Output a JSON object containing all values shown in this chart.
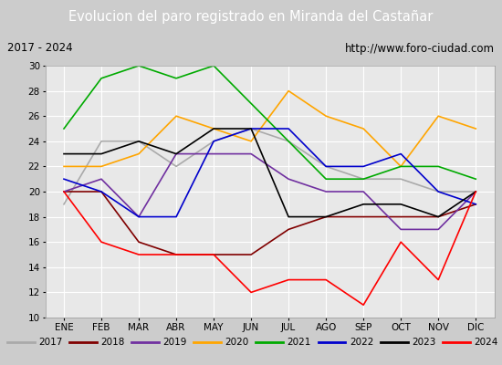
{
  "title": "Evolucion del paro registrado en Miranda del Castanar",
  "title_special": "Evolucion del paro registrado en Miranda del Castañar",
  "subtitle_left": "2017 - 2024",
  "subtitle_right": "http://www.foro-ciudad.com",
  "background_color": "#e8e8e8",
  "plot_bg_color": "#e8e8e8",
  "header_bg_color": "#4472c4",
  "months": [
    "ENE",
    "FEB",
    "MAR",
    "ABR",
    "MAY",
    "JUN",
    "JUL",
    "AGO",
    "SEP",
    "OCT",
    "NOV",
    "DIC"
  ],
  "ylim": [
    10,
    30
  ],
  "yticks": [
    10,
    12,
    14,
    16,
    18,
    20,
    22,
    24,
    26,
    28,
    30
  ],
  "series": {
    "2017": {
      "color": "#aaaaaa",
      "linewidth": 1.2,
      "data": [
        19,
        24,
        24,
        22,
        24,
        25,
        24,
        22,
        21,
        21,
        20,
        20
      ]
    },
    "2018": {
      "color": "#800000",
      "linewidth": 1.2,
      "data": [
        20,
        20,
        16,
        15,
        15,
        15,
        17,
        18,
        18,
        18,
        18,
        19
      ]
    },
    "2019": {
      "color": "#7030a0",
      "linewidth": 1.2,
      "data": [
        20,
        21,
        18,
        23,
        23,
        23,
        21,
        20,
        20,
        17,
        17,
        20
      ]
    },
    "2020": {
      "color": "#ffa500",
      "linewidth": 1.2,
      "data": [
        22,
        22,
        23,
        26,
        25,
        24,
        28,
        26,
        25,
        22,
        26,
        25
      ]
    },
    "2021": {
      "color": "#00aa00",
      "linewidth": 1.2,
      "data": [
        25,
        29,
        30,
        29,
        30,
        27,
        24,
        21,
        21,
        22,
        22,
        21
      ]
    },
    "2022": {
      "color": "#0000cc",
      "linewidth": 1.2,
      "data": [
        21,
        20,
        18,
        18,
        24,
        25,
        25,
        22,
        22,
        23,
        20,
        19
      ]
    },
    "2023": {
      "color": "#000000",
      "linewidth": 1.2,
      "data": [
        23,
        23,
        24,
        23,
        25,
        25,
        18,
        18,
        19,
        19,
        18,
        20
      ]
    },
    "2024": {
      "color": "#ff0000",
      "linewidth": 1.2,
      "data": [
        20,
        16,
        15,
        15,
        15,
        12,
        13,
        13,
        11,
        16,
        13,
        20
      ]
    }
  }
}
